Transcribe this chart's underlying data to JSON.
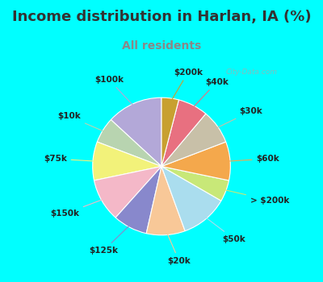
{
  "title": "Income distribution in Harlan, IA (%)",
  "subtitle": "All residents",
  "outer_bg": "#00FFFF",
  "chart_bg": "#ddf0e8",
  "title_color": "#333333",
  "subtitle_color": "#888888",
  "labels": [
    "$100k",
    "$10k",
    "$75k",
    "$150k",
    "$125k",
    "$20k",
    "$50k",
    "> $200k",
    "$60k",
    "$30k",
    "$40k",
    "$200k"
  ],
  "values": [
    13,
    6,
    9,
    10,
    8,
    9,
    11,
    5,
    9,
    8,
    7,
    4
  ],
  "colors": [
    "#b3a8d8",
    "#b8d4b0",
    "#f2f27a",
    "#f4b8c8",
    "#8888cc",
    "#f8c898",
    "#aaddee",
    "#c8e878",
    "#f4a84c",
    "#c8c0a8",
    "#e87080",
    "#c8a030"
  ],
  "startangle": 90,
  "title_fontsize": 13,
  "subtitle_fontsize": 10,
  "label_fontsize": 7.5,
  "watermark": "City-Data.com"
}
